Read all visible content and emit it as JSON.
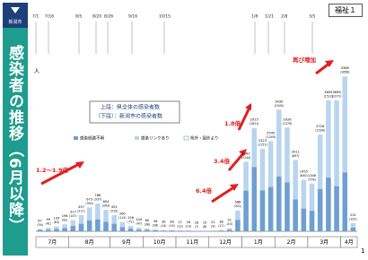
{
  "header": {
    "logo": "新潟市",
    "badge": "福祉１",
    "banner": "感染者の推移（6月以降）",
    "page": "1"
  },
  "chart_data": {
    "type": "bar",
    "y_label": "人",
    "note_top": "上段：県全体の感染者数",
    "note_bottom": "（下段）：新潟市の感染者数",
    "legend": [
      "感染経路不明",
      "感染リンクあり",
      "県外・国外より"
    ],
    "events": [
      "7/1",
      "7/16",
      "8/5",
      "8/20",
      "8/26",
      "9/16",
      "10/15",
      "1/8",
      "1/21",
      "2/8",
      "3/5"
    ],
    "annotations": [
      "1.2〜1.9倍",
      "6.4倍",
      "3.4倍",
      "1.8倍",
      "再び増加"
    ],
    "categories": [
      "7月",
      null,
      null,
      null,
      "8月",
      null,
      null,
      null,
      null,
      "9月",
      null,
      null,
      null,
      "10月",
      null,
      null,
      null,
      "11月",
      null,
      null,
      null,
      "12月",
      null,
      null,
      null,
      "1月",
      null,
      null,
      null,
      "2月",
      null,
      null,
      null,
      "3月",
      null,
      null,
      null,
      "4月",
      null
    ],
    "values": [
      67,
      99,
      139,
      196,
      317,
      457,
      673,
      786,
      604,
      455,
      260,
      156,
      104,
      80,
      56,
      36,
      38,
      27,
      26,
      18,
      15,
      22,
      38,
      91,
      588,
      1962,
      2915,
      2323,
      2545,
      3430,
      2926,
      2011,
      1455,
      1346,
      2728,
      3694,
      3696,
      4368,
      231
    ],
    "city_values": [
      39,
      41,
      63,
      92,
      147,
      211,
      304,
      337,
      263,
      210,
      114,
      72,
      47,
      38,
      26,
      14,
      19,
      12,
      10,
      7,
      6,
      9,
      17,
      43,
      321,
      1144,
      1811,
      1152,
      1249,
      1545,
      1379,
      897,
      640,
      576,
      1189,
      1512,
      1271,
      1658,
      102
    ],
    "city_labels": [
      "(39)",
      "(41)",
      "(63)",
      "(92)",
      "(147)",
      "(211)",
      "(304)",
      "(337)",
      "(263)",
      "(210)",
      "(114)",
      "(72)",
      "(47)",
      "(38)",
      "(26)",
      "(14)",
      "(19)",
      "(12)",
      "(10)",
      "(7)",
      "(6)",
      "(9)",
      "(17)",
      "(43)",
      "(321)",
      "(1144)",
      "(1811)",
      "(1152)",
      "(1249)",
      "(1545)",
      "(1379)",
      "(897)",
      "(640)",
      "(576)",
      "(1189)",
      "(1512)",
      "(1271)",
      "(1658)",
      "(102)"
    ],
    "color": "#b9d4ee",
    "city_color": "#6f9fd2",
    "ylim": [
      0,
      4500
    ]
  }
}
